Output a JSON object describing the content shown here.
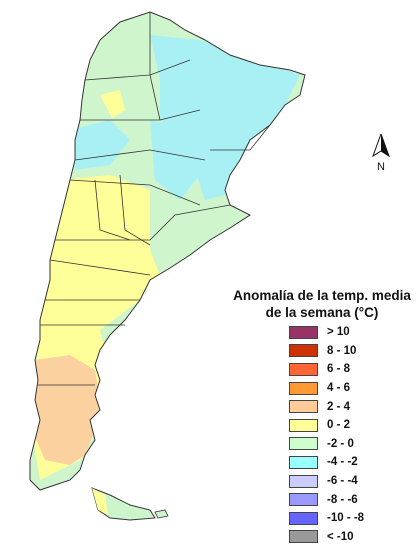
{
  "legend": {
    "title": "Anomalía de la temp. media de la semana (°C)",
    "title_line1": "Anomalía de la temp. media",
    "title_line2": "de la semana (°C)",
    "items": [
      {
        "label": "> 10",
        "color": "#993366"
      },
      {
        "label": "8 - 10",
        "color": "#cc3300"
      },
      {
        "label": "6 - 8",
        "color": "#ff6633"
      },
      {
        "label": "4 - 6",
        "color": "#ff9933"
      },
      {
        "label": "2 - 4",
        "color": "#ffcc99"
      },
      {
        "label": "0 - 2",
        "color": "#ffff99"
      },
      {
        "label": "-2 - 0",
        "color": "#ccffcc"
      },
      {
        "label": "-4 - -2",
        "color": "#99ffff"
      },
      {
        "label": "-6 - -4",
        "color": "#ccccff"
      },
      {
        "label": "-8 - -6",
        "color": "#9999ff"
      },
      {
        "label": "-10 - -8",
        "color": "#6666ff"
      },
      {
        "label": "< -10",
        "color": "#999999"
      }
    ]
  },
  "north_arrow": {
    "label": "N"
  },
  "map": {
    "country": "Argentina",
    "colors": {
      "cold": "#a9f0f5",
      "cool": "#cff5cc",
      "warm": "#ffff99",
      "hot": "#fcd1a0",
      "border": "#333333"
    }
  }
}
